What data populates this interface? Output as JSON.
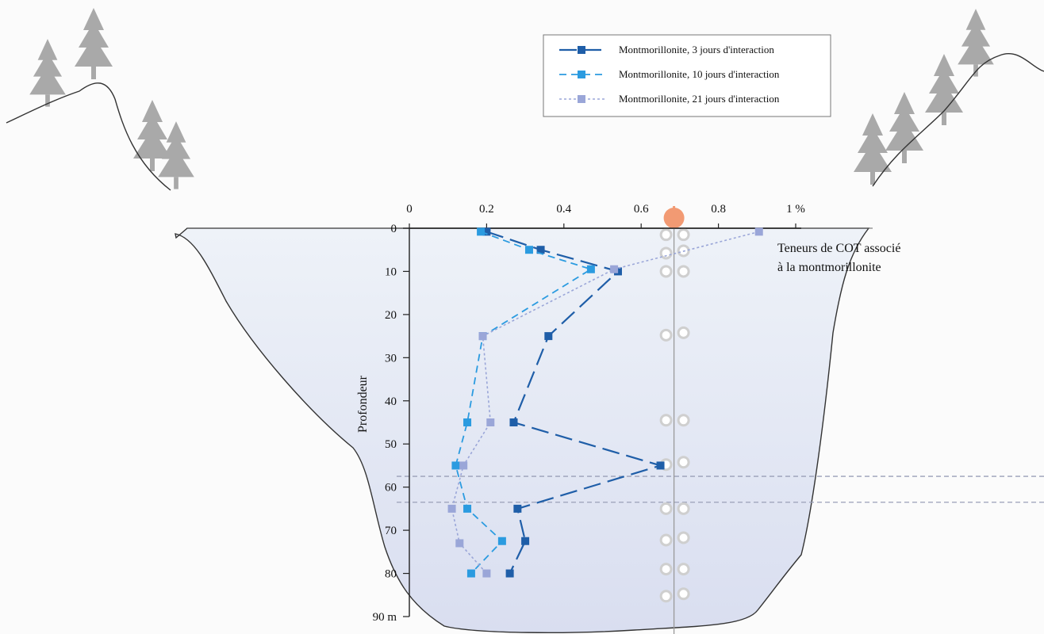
{
  "chart_data": {
    "type": "line",
    "title": "",
    "xlabel": "",
    "x_unit_label": "1 %",
    "ylabel": "Profondeur",
    "y_unit_label": "90 m",
    "xlim": [
      0,
      1.0
    ],
    "ylim": [
      0,
      90
    ],
    "x_ticks": [
      "0",
      "0.2",
      "0.4",
      "0.6",
      "0.8",
      "1 %"
    ],
    "y_ticks": [
      "0",
      "10",
      "20",
      "30",
      "40",
      "50",
      "60",
      "70",
      "80",
      "90 m"
    ],
    "legend_position": "top-right",
    "annotation": [
      "Teneurs de COT associé",
      "à la montmorillonite"
    ],
    "reference_line_x": 0.685,
    "dashed_depth_lines": [
      57.5,
      63.5
    ],
    "series": [
      {
        "name": "Montmorillonite, 3 jours d'interaction",
        "color": "#1f5ea8",
        "style": "long-dash",
        "points": [
          [
            0.2,
            0.8
          ],
          [
            0.34,
            5
          ],
          [
            0.54,
            10
          ],
          [
            0.36,
            25
          ],
          [
            0.27,
            45
          ],
          [
            0.65,
            55
          ],
          [
            0.28,
            65
          ],
          [
            0.3,
            72.5
          ],
          [
            0.26,
            80
          ]
        ]
      },
      {
        "name": "Montmorillonite, 10 jours d'interaction",
        "color": "#2b9be0",
        "style": "dash",
        "points": [
          [
            0.185,
            0.8
          ],
          [
            0.31,
            5
          ],
          [
            0.47,
            9.5
          ],
          [
            0.19,
            25
          ],
          [
            0.15,
            45
          ],
          [
            0.12,
            55
          ],
          [
            0.15,
            65
          ],
          [
            0.24,
            72.5
          ],
          [
            0.16,
            80
          ]
        ]
      },
      {
        "name": "Montmorillonite, 21 jours d'interaction",
        "color": "#9aa6d8",
        "style": "dot",
        "points": [
          [
            0.905,
            0.8
          ],
          [
            0.53,
            9.5
          ],
          [
            0.19,
            25
          ],
          [
            0.21,
            45
          ],
          [
            0.14,
            55
          ],
          [
            0.11,
            65
          ],
          [
            0.13,
            73
          ],
          [
            0.2,
            80
          ]
        ]
      }
    ],
    "colors": {
      "water_top": "#eef2f8",
      "water_bottom": "#d9def0",
      "tree": "#a9a9a9",
      "float_ball": "#f29a73",
      "bubble": "#cfcfcf"
    }
  }
}
